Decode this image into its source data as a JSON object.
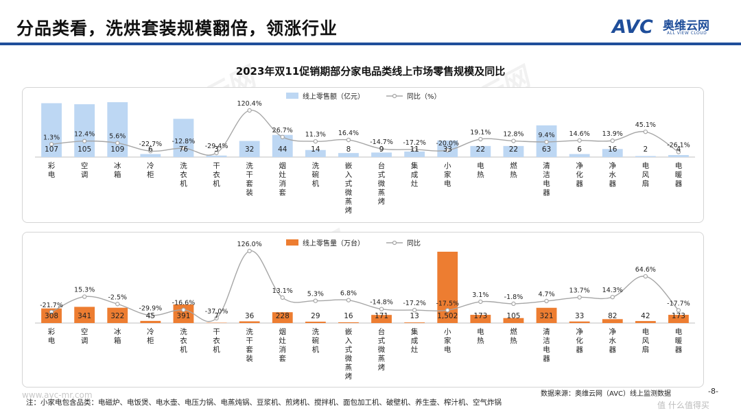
{
  "slide_title": "分品类看，洗烘套装规模翻倍，领涨行业",
  "logo": {
    "brand": "AVC",
    "cn": "奥维云网",
    "en": "ALL VIEW CLOUD"
  },
  "chart_title": "2023年双11促销期部分家电品类线上市场零售规模及同比",
  "source": "数据来源：奥维云网（AVC）线上监测数据",
  "page_number": "-8-",
  "footnote": "注：小家电包含品类：电磁炉、电饭煲、电水壶、电压力锅、电蒸炖锅、豆浆机、煎烤机、搅拌机、面包加工机、破壁机、养生壶、榨汁机、空气炸锅",
  "website": "www.avc-mr.com",
  "overlay_mark": "值 什么值得买",
  "colors": {
    "accent": "#1f4e9a",
    "bar_top": "#bdd7f3",
    "bar_bottom": "#ed7d31",
    "line": "#a6a6a6"
  },
  "chart_data": [
    {
      "type": "bar",
      "legend_position": "top",
      "categories": [
        "彩电",
        "空调",
        "冰箱",
        "冷柜",
        "洗衣机",
        "干衣机",
        "洗干套装",
        "烟灶消套",
        "洗碗机",
        "嵌入式微蒸烤",
        "台式微蒸烤",
        "集成灶",
        "小家电",
        "电热",
        "燃热",
        "清洁电器",
        "净化器",
        "净水器",
        "电风扇",
        "电暖器"
      ],
      "series": [
        {
          "name": "线上零售额（亿元）",
          "type": "bar",
          "values": [
            107,
            105,
            109,
            6,
            76,
            3,
            32,
            44,
            14,
            8,
            9,
            11,
            33,
            22,
            22,
            63,
            6,
            16,
            2,
            4
          ]
        },
        {
          "name": "同比（%）",
          "type": "line",
          "values": [
            1.3,
            12.4,
            5.6,
            -22.7,
            -12.8,
            -29.4,
            120.4,
            26.7,
            11.3,
            16.4,
            -14.7,
            -17.2,
            -20.0,
            19.1,
            12.8,
            9.4,
            14.6,
            13.9,
            45.1,
            -26.1
          ]
        }
      ],
      "labels_bar": [
        "107",
        "105",
        "109",
        "6",
        "76",
        "3",
        "32",
        "44",
        "14",
        "8",
        "9",
        "11",
        "33",
        "22",
        "22",
        "63",
        "6",
        "16",
        "2",
        "4"
      ],
      "labels_line": [
        "1.3%",
        "12.4%",
        "5.6%",
        "-22.7%",
        "-12.8%",
        "-29.4%",
        "120.4%",
        "26.7%",
        "11.3%",
        "16.4%",
        "-14.7%",
        "-17.2%",
        "-20.0%",
        "19.1%",
        "12.8%",
        "9.4%",
        "14.6%",
        "13.9%",
        "45.1%",
        "-26.1%"
      ],
      "grid": false
    },
    {
      "type": "bar",
      "legend_position": "top",
      "categories": [
        "彩电",
        "空调",
        "冰箱",
        "冷柜",
        "洗衣机",
        "干衣机",
        "洗干套装",
        "烟灶消套",
        "洗碗机",
        "嵌入式微蒸烤",
        "台式微蒸烤",
        "集成灶",
        "小家电",
        "电热",
        "燃热",
        "清洁电器",
        "净化器",
        "净水器",
        "电风扇",
        "电暖器"
      ],
      "series": [
        {
          "name": "线上零售量（万台）",
          "type": "bar",
          "values": [
            308,
            341,
            322,
            45,
            391,
            7,
            36,
            228,
            29,
            16,
            171,
            13,
            1502,
            173,
            105,
            321,
            33,
            82,
            42,
            173
          ]
        },
        {
          "name": "同比",
          "type": "line",
          "values": [
            -21.7,
            15.3,
            -2.5,
            -29.9,
            -16.6,
            -37.0,
            126.0,
            13.1,
            5.3,
            6.8,
            -14.8,
            -17.2,
            -17.5,
            3.1,
            -1.8,
            4.7,
            13.7,
            14.3,
            64.6,
            -17.7
          ]
        }
      ],
      "labels_bar": [
        "308",
        "341",
        "322",
        "45",
        "391",
        "7",
        "36",
        "228",
        "29",
        "16",
        "171",
        "13",
        "1,502",
        "173",
        "105",
        "321",
        "33",
        "82",
        "42",
        "173"
      ],
      "labels_line": [
        "-21.7%",
        "15.3%",
        "-2.5%",
        "-29.9%",
        "-16.6%",
        "-37.0%",
        "126.0%",
        "13.1%",
        "5.3%",
        "6.8%",
        "-14.8%",
        "-17.2%",
        "-17.5%",
        "3.1%",
        "-1.8%",
        "4.7%",
        "13.7%",
        "14.3%",
        "64.6%",
        "-17.7%"
      ],
      "grid": false
    }
  ]
}
